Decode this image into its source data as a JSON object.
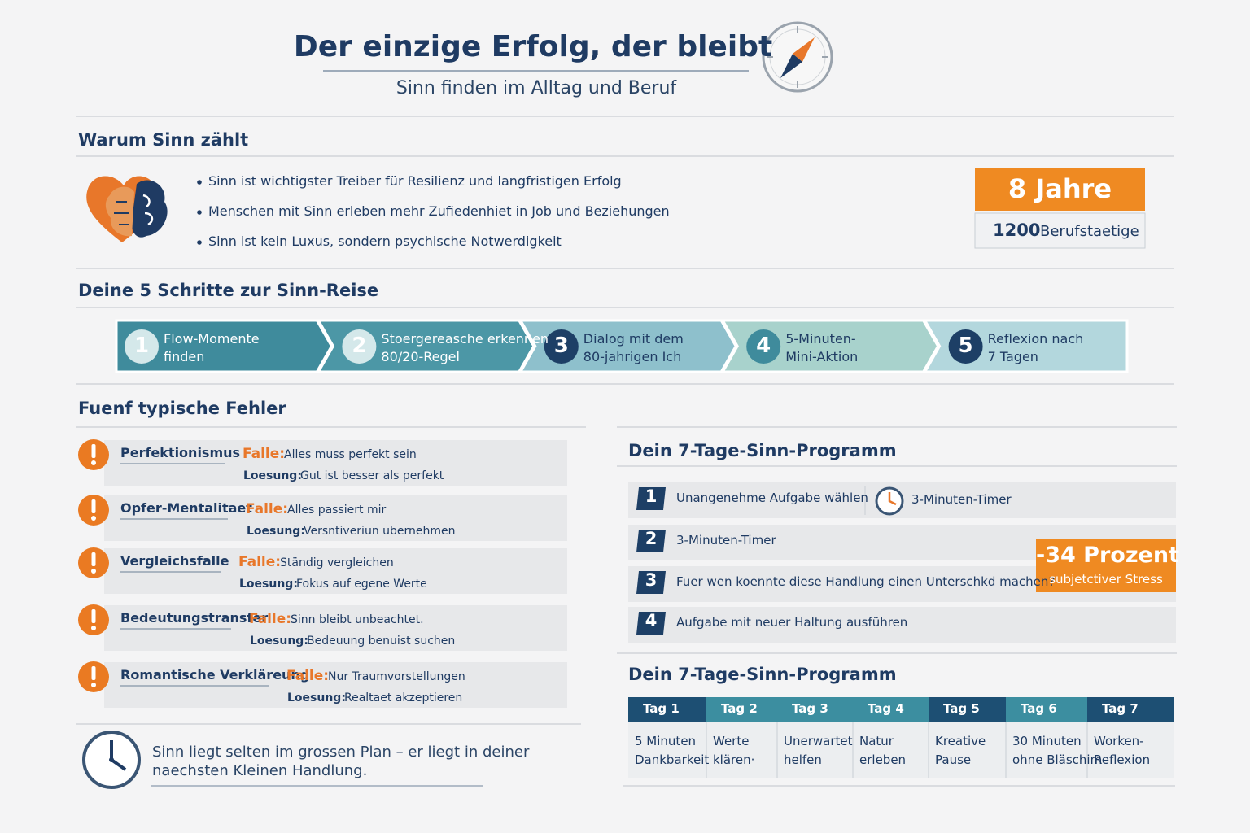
{
  "header": {
    "title": "Der einzige Erfolg, der bleibt",
    "subtitle": "Sinn finden im Alltag und Beruf"
  },
  "why": {
    "heading": "Warum Sinn zählt",
    "bullets": [
      "Sinn ist wichtigster Treiber für Resilienz und langfristigen Erfolg",
      "Menschen mit Sinn erleben mehr Zufiedenhiet in Job und Beziehungen",
      "Sinn ist kein Luxus, sondern psychische Notwerdigkeit"
    ],
    "stat": {
      "big": "8 Jahre",
      "number": "1200",
      "text": "Berufstaetige"
    }
  },
  "steps": {
    "heading": "Deine 5 Schritte zur Sinn-Reise",
    "items": [
      {
        "num": 1,
        "lines": [
          "Flow-Momente",
          "finden"
        ]
      },
      {
        "num": 2,
        "lines": [
          "Stoergereasche erkennen",
          "80/20-Regel"
        ]
      },
      {
        "num": 3,
        "lines": [
          "Dialog mit dem",
          "80-jahrigen Ich"
        ]
      },
      {
        "num": 4,
        "lines": [
          "5-Minuten-",
          "Mini-Aktion"
        ]
      },
      {
        "num": 5,
        "lines": [
          "Reflexion nach",
          "7 Tagen"
        ]
      }
    ]
  },
  "mistakes": {
    "heading": "Fuenf typische Fehler",
    "trap_label": "Falle:",
    "solution_label": "Loesung:",
    "items": [
      {
        "name": "Perfektionismus",
        "trap": "Alles muss perfekt sein",
        "solution": "Gut ist besser als perfekt"
      },
      {
        "name": "Opfer-Mentalitaet",
        "trap": "Alles passiert mir",
        "solution": "Versntiveriun ubernehmen"
      },
      {
        "name": "Vergleichsfalle",
        "trap": "Ständig vergleichen",
        "solution": "Fokus auf egene Werte"
      },
      {
        "name": "Bedeutungstransfer",
        "trap": "Sinn bleibt unbeachtet.",
        "solution": "Bedeuung benuist suchen"
      },
      {
        "name": "Romantische Verkläreung",
        "trap": "Nur Traumvorstellungen",
        "solution": "Realtaet akzeptieren"
      }
    ]
  },
  "quote": {
    "lines": [
      "Sinn liegt selten im grossen Plan – er liegt in deiner",
      "naechsten Kleinen Handlung."
    ]
  },
  "program": {
    "heading": "Dein 7-Tage-Sinn-Programm",
    "tasks": [
      {
        "num": 1,
        "text": "Unangenehme Aufgabe wählen"
      },
      {
        "num": 2,
        "text": "3-Minuten-Timer"
      },
      {
        "num": 3,
        "text": "Fuer wen koennte diese Handlung einen Unterschkd machen?"
      },
      {
        "num": 4,
        "text": "Aufgabe mit neuer Haltung ausführen"
      }
    ],
    "timer": "3-Minuten-Timer",
    "stat": {
      "big": "-34 Prozent",
      "small": "subjetctiver Stress"
    }
  },
  "week": {
    "heading": "Dein 7-Tage-Sinn-Programm",
    "days": [
      {
        "label": "Tag 1",
        "lines": [
          "5 Minuten",
          "Dankbarkeit"
        ]
      },
      {
        "label": "Tag 2",
        "lines": [
          "Werte",
          "klären·"
        ]
      },
      {
        "label": "Tag 3",
        "lines": [
          "Unerwartet",
          "helfen"
        ]
      },
      {
        "label": "Tag 4",
        "lines": [
          "Natur",
          "erleben"
        ]
      },
      {
        "label": "Tag 5",
        "lines": [
          "Kreative",
          "Pause"
        ]
      },
      {
        "label": "Tag 6",
        "lines": [
          "30 Minuten",
          "ohne Bläschim"
        ]
      },
      {
        "label": "Tag 7",
        "lines": [
          "Worken-",
          "Reflexion"
        ]
      }
    ]
  }
}
